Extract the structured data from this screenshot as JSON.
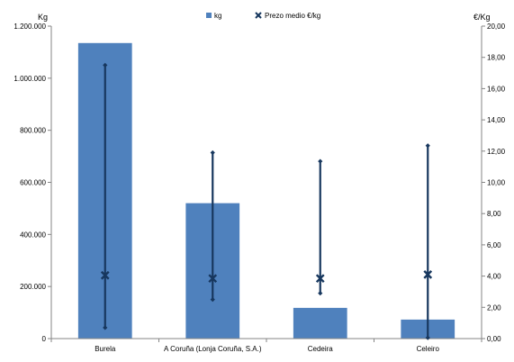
{
  "chart_data": {
    "type": "bar",
    "categories": [
      "Burela",
      "A Coruña (Lonja Coruña, S.A.)",
      "Cedeira",
      "Celeiro"
    ],
    "series": [
      {
        "name": "kg",
        "type": "bar",
        "axis": "left",
        "color": "#4f81bd",
        "values": [
          1135000,
          520000,
          118000,
          73000
        ]
      },
      {
        "name": "Prezo medio €/kg",
        "type": "scatter-with-range",
        "axis": "right",
        "color": "#17375e",
        "values": [
          4.05,
          3.85,
          3.85,
          4.1
        ],
        "min": [
          0.7,
          2.5,
          2.9,
          0.05
        ],
        "max": [
          17.5,
          11.9,
          11.35,
          12.35
        ]
      }
    ],
    "left_axis": {
      "label": "Kg",
      "ylim": [
        0,
        1200000
      ],
      "ticks": [
        "0",
        "200.000",
        "400.000",
        "600.000",
        "800.000",
        "1.000.000",
        "1.200.000"
      ]
    },
    "right_axis": {
      "label": "€/Kg",
      "ylim": [
        0,
        20
      ],
      "ticks": [
        "0,00",
        "2,00",
        "4,00",
        "6,00",
        "8,00",
        "10,00",
        "12,00",
        "14,00",
        "16,00",
        "18,00",
        "20,00"
      ]
    },
    "legend": {
      "placement": "top-center",
      "entries": [
        "kg",
        "Prezo medio €/kg"
      ]
    },
    "grid": false
  }
}
